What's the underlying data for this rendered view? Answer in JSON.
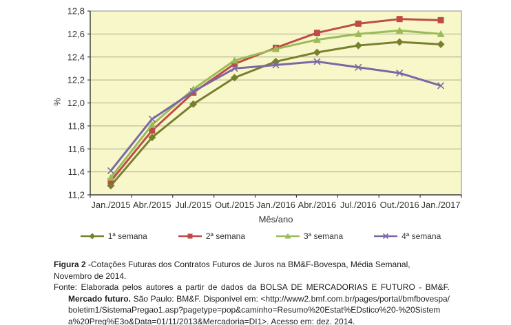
{
  "chart_data": {
    "type": "line",
    "title": "",
    "xlabel": "Mês/ano",
    "ylabel": "%",
    "ylim": [
      11.2,
      12.8
    ],
    "ytick_step": 0.2,
    "decimal_separator": ",",
    "grid": true,
    "legend_position": "bottom",
    "plot_bg": "#F7F7C9",
    "grid_color": "#ADAB90",
    "border_color": "#8C8C8C",
    "axis_color": "#3a3a3a",
    "categories": [
      "Jan./2015",
      "Abr./2015",
      "Jul./2015",
      "Out./2015",
      "Jan./2016",
      "Abr./2016",
      "Jul./2016",
      "Out./2016",
      "Jan./2017"
    ],
    "series": [
      {
        "name": "1ª semana",
        "marker": "diamond",
        "color": "#77802F",
        "values": [
          11.28,
          11.7,
          11.99,
          12.22,
          12.36,
          12.44,
          12.5,
          12.53,
          12.51
        ]
      },
      {
        "name": "2ª semana",
        "marker": "square",
        "color": "#BE4B48",
        "values": [
          11.32,
          11.76,
          12.09,
          12.34,
          12.48,
          12.61,
          12.69,
          12.73,
          12.72
        ]
      },
      {
        "name": "3ª semana",
        "marker": "triangle",
        "color": "#9BBB59",
        "values": [
          11.35,
          11.81,
          12.12,
          12.37,
          12.47,
          12.55,
          12.6,
          12.63,
          12.6
        ]
      },
      {
        "name": "4ª semana",
        "marker": "x",
        "color": "#7A68A6",
        "values": [
          11.41,
          11.86,
          12.1,
          12.3,
          12.33,
          12.36,
          12.31,
          12.26,
          12.15
        ]
      }
    ]
  },
  "caption": {
    "figure_label": "Figura 2",
    "figure_text": " -Cotações Futuras dos Contratos Futuros de Juros na BM&F-Bovespa, Média Semanal, Novembro de 2014.",
    "source_label": "Fonte:",
    "source_text_1": "Elaborada pelos autores a partir de dados da BOLSA DE MERCADORIAS E FUTURO - BM&F.",
    "source_bold": "Mercado futuro.",
    "source_text_2": "São Paulo: BM&F. Disponível em:",
    "source_url": "<http://www2.bmf.com.br/pages/portal/bmfbovespa/boletim1/SistemaPregao1.asp?pagetype=pop&caminho=Resumo%20Estat%EDstico%20-%20Sistema%20Preg%E3o&Data=01/11/2013&Mercadoria=DI1>.",
    "source_text_3": "Acesso em: dez. 2014."
  }
}
